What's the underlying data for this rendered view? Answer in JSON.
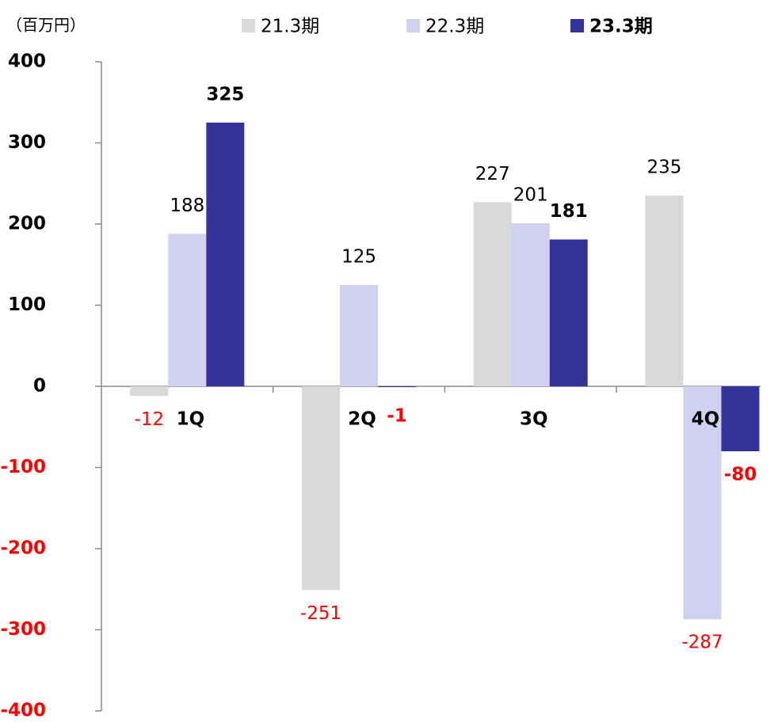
{
  "chart_data": {
    "type": "bar",
    "unit_label": "（百万円）",
    "categories": [
      "1Q",
      "2Q",
      "3Q",
      "4Q"
    ],
    "series": [
      {
        "name": "21.3期",
        "color": "#d9d9d9",
        "values": [
          -12,
          -251,
          227,
          235
        ]
      },
      {
        "name": "22.3期",
        "color": "#d0d0f0",
        "values": [
          188,
          125,
          201,
          -287
        ]
      },
      {
        "name": "23.3期",
        "color": "#333399",
        "values": [
          325,
          -1,
          181,
          -80
        ]
      }
    ],
    "ylim": [
      -400,
      400
    ],
    "yticks": [
      -400,
      -300,
      -200,
      -100,
      0,
      100,
      200,
      300,
      400
    ],
    "negative_color": "#ff0000",
    "legend": "top"
  }
}
